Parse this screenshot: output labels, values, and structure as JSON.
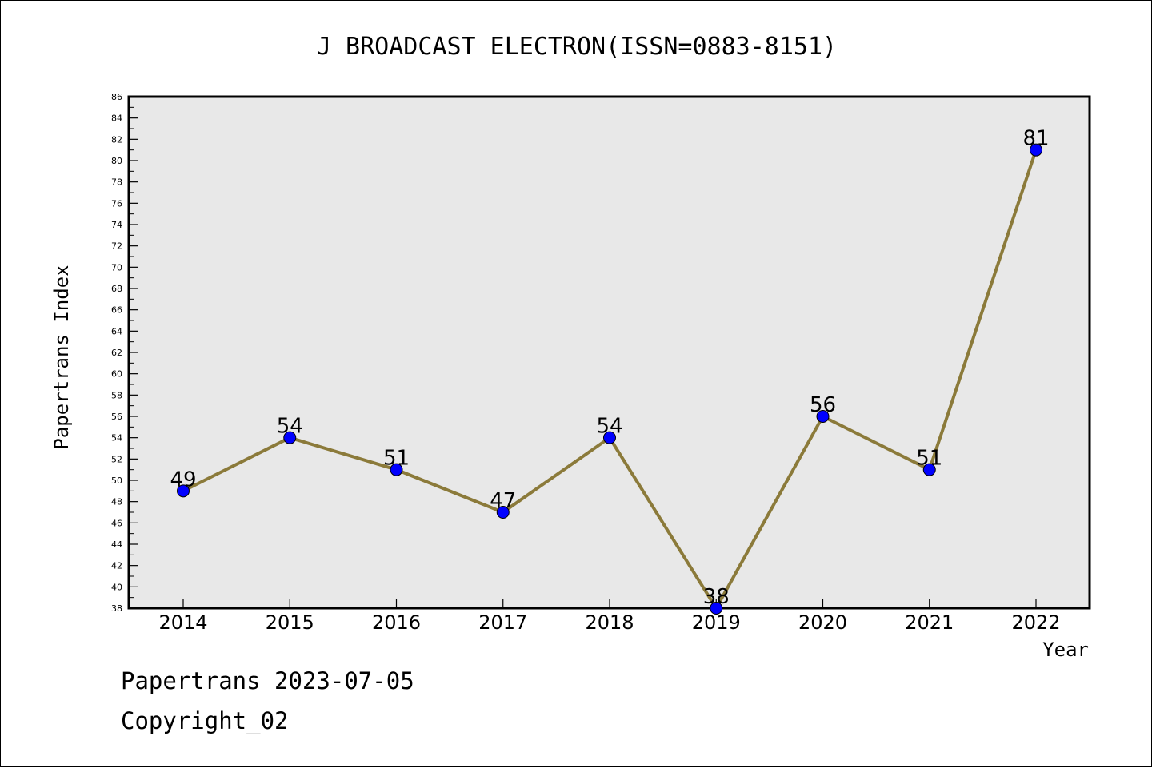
{
  "chart_data": {
    "type": "line",
    "title": "J BROADCAST ELECTRON(ISSN=0883-8151)",
    "xlabel": "Year",
    "ylabel": "Papertrans Index",
    "categories": [
      "2014",
      "2015",
      "2016",
      "2017",
      "2018",
      "2019",
      "2020",
      "2021",
      "2022"
    ],
    "series": [
      {
        "values": [
          49,
          54,
          51,
          47,
          54,
          38,
          56,
          51,
          81
        ]
      }
    ],
    "ylim": [
      38,
      86
    ],
    "yticks": [
      38,
      40,
      42,
      44,
      46,
      48,
      50,
      52,
      54,
      56,
      58,
      60,
      62,
      64,
      66,
      68,
      70,
      72,
      74,
      76,
      78,
      80,
      82,
      84,
      86
    ],
    "grid": false,
    "colors": {
      "line": "#8b7a3a",
      "marker": "#0000ff",
      "plot_background": "#e8e8e8"
    }
  },
  "footer": {
    "date": "Papertrans 2023-07-05",
    "copyright": "Copyright_02"
  }
}
